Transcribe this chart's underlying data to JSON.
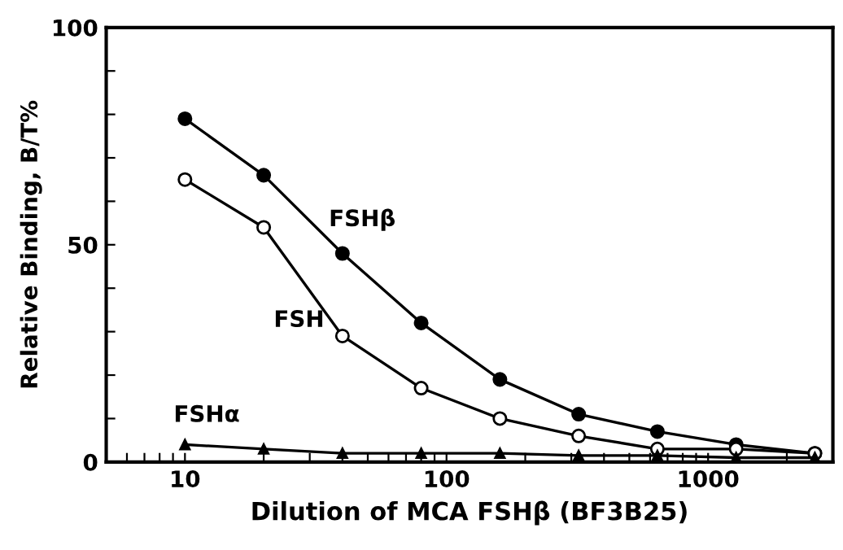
{
  "chart_data": {
    "type": "line",
    "xlabel": "Dilution of MCA FSHβ (BF3B25)",
    "ylabel": "Relative Binding, B/T%",
    "log": "x",
    "xlim": [
      5,
      3000
    ],
    "ylim": [
      0,
      100
    ],
    "xticks": [
      {
        "value": 6,
        "label": null
      },
      {
        "value": 7,
        "label": null
      },
      {
        "value": 8,
        "label": null
      },
      {
        "value": 9,
        "label": null
      },
      10,
      {
        "value": 20,
        "label": null
      },
      {
        "value": 30,
        "label": null
      },
      {
        "value": 40,
        "label": null
      },
      {
        "value": 50,
        "label": null
      },
      {
        "value": 60,
        "label": null
      },
      {
        "value": 70,
        "label": null
      },
      {
        "value": 80,
        "label": null
      },
      {
        "value": 90,
        "label": null
      },
      100,
      {
        "value": 200,
        "label": null
      },
      {
        "value": 300,
        "label": null
      },
      {
        "value": 400,
        "label": null
      },
      {
        "value": 500,
        "label": null
      },
      {
        "value": 600,
        "label": null
      },
      {
        "value": 700,
        "label": null
      },
      {
        "value": 800,
        "label": null
      },
      {
        "value": 900,
        "label": null
      },
      1000,
      {
        "value": 2000,
        "label": null
      },
      {
        "value": 3000,
        "label": null
      }
    ],
    "yticks": [
      0,
      {
        "value": 10,
        "label": null
      },
      {
        "value": 20,
        "label": null
      },
      {
        "value": 30,
        "label": null
      },
      {
        "value": 40,
        "label": null
      },
      50,
      {
        "value": 60,
        "label": null
      },
      {
        "value": 70,
        "label": null
      },
      {
        "value": 80,
        "label": null
      },
      {
        "value": 90,
        "label": null
      },
      100
    ],
    "grid": false,
    "legend": false,
    "x": [
      10,
      20,
      40,
      80,
      160,
      320,
      640,
      1280,
      2560
    ],
    "series": [
      {
        "name": "FSHβ",
        "color": "#000000",
        "marker": "circle",
        "values": [
          79,
          66,
          48,
          32,
          19,
          11,
          7,
          4,
          2
        ]
      },
      {
        "name": "FSH",
        "color": "#000000",
        "marker": "circle",
        "values": [
          65,
          54,
          29,
          17,
          10,
          6,
          3,
          3,
          2
        ]
      },
      {
        "name": "FSHα",
        "color": "#000000",
        "marker": "triangle",
        "values": [
          4,
          3,
          2,
          2,
          2,
          1.5,
          1.5,
          1,
          1
        ]
      }
    ]
  }
}
